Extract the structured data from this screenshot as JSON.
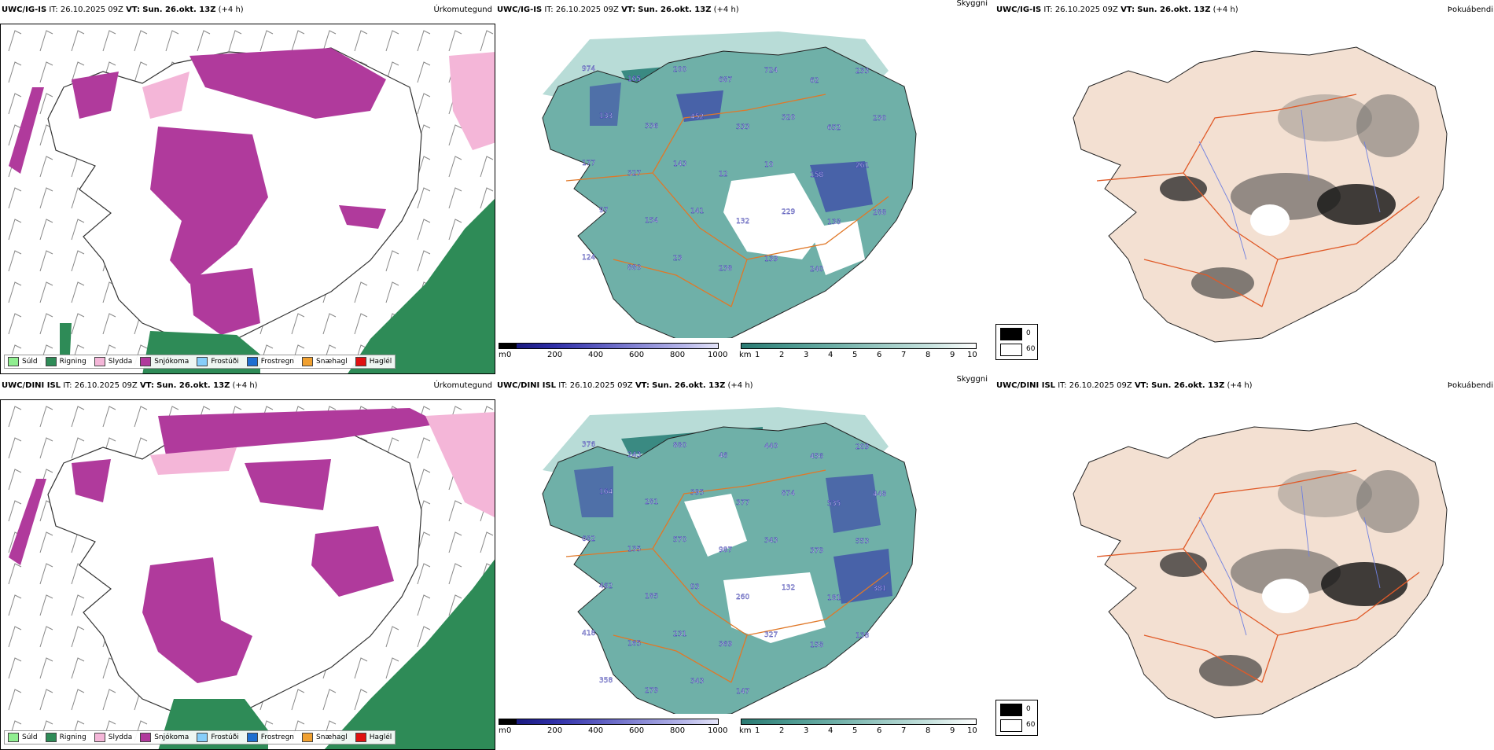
{
  "rows": [
    {
      "model": "UWC/IG-IS",
      "it_label": "IT:",
      "it_value": "26.10.2025 09Z",
      "vt_label": "VT:",
      "vt_value": "Sun. 26.okt. 13Z",
      "lead": "(+4 h)"
    },
    {
      "model": "UWC/DINI ISL",
      "it_label": "IT:",
      "it_value": "26.10.2025 09Z",
      "vt_label": "VT:",
      "vt_value": "Sun. 26.okt. 13Z",
      "lead": "(+4 h)"
    }
  ],
  "panel_titles": {
    "precip_type": "Úrkomutegund",
    "cloud": "Skyggni",
    "fog": "Þokuábendi"
  },
  "precip_legend": [
    {
      "label": "Súld",
      "color": "#90ee90"
    },
    {
      "label": "Rigning",
      "color": "#2e8b57"
    },
    {
      "label": "Slydda",
      "color": "#f4b6d8"
    },
    {
      "label": "Snjókoma",
      "color": "#b03a9c"
    },
    {
      "label": "Frostúði",
      "color": "#87cefa"
    },
    {
      "label": "Frostregn",
      "color": "#1e6fd0"
    },
    {
      "label": "Snæhagl",
      "color": "#f0a030"
    },
    {
      "label": "Haglél",
      "color": "#e01010"
    }
  ],
  "cloud_base_bar": {
    "unit": "m",
    "ticks": [
      "0",
      "200",
      "400",
      "600",
      "800",
      "1000"
    ]
  },
  "visibility_bar": {
    "unit": "km",
    "ticks": [
      "1",
      "2",
      "3",
      "4",
      "5",
      "6",
      "7",
      "8",
      "9",
      "10"
    ]
  },
  "fog_legend": {
    "top_value": "0",
    "bottom_value": "60"
  },
  "cloud_labels_top": [
    "974",
    "165",
    "200",
    "687",
    "724",
    "62",
    "233",
    "133",
    "336",
    "452",
    "333",
    "320",
    "652",
    "230",
    "177",
    "327",
    "143",
    "12",
    "10",
    "158",
    "261",
    "97",
    "154",
    "141",
    "132",
    "229",
    "138",
    "288",
    "124",
    "880",
    "23",
    "238",
    "139",
    "240"
  ],
  "cloud_labels_bottom": [
    "376",
    "243",
    "880",
    "46",
    "440",
    "456",
    "209",
    "164",
    "281",
    "395",
    "377",
    "874",
    "535",
    "448",
    "682",
    "135",
    "570",
    "987",
    "343",
    "379",
    "553",
    "462",
    "185",
    "93",
    "260",
    "132",
    "181",
    "381",
    "418",
    "165",
    "231",
    "369",
    "327",
    "158",
    "138",
    "358",
    "279",
    "343",
    "147"
  ],
  "colors": {
    "land": "#f3e0d2",
    "teal_dark": "#3a8a82",
    "teal_mid": "#6fb0a8",
    "teal_light": "#b8dcd7",
    "blue_low": "#2f2fa8",
    "road": "#e07828",
    "snow": "#b03a9c",
    "rain": "#2e8b57"
  }
}
